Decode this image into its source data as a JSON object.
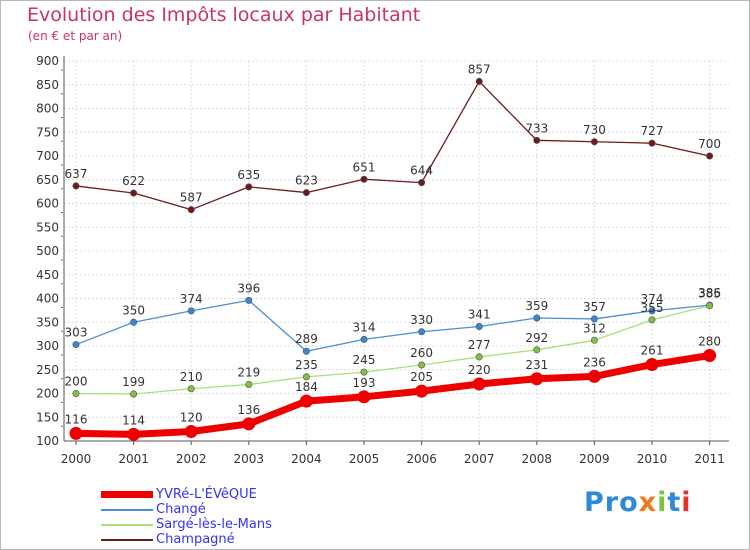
{
  "header": {
    "title": "Evolution des Impôts locaux par Habitant",
    "subtitle": "(en € et par an)"
  },
  "brand": {
    "text": "Proxiti",
    "letters": [
      "Pro",
      "x",
      "i",
      "t",
      "i"
    ]
  },
  "chart_data": {
    "type": "line",
    "x": [
      2000,
      2001,
      2002,
      2003,
      2004,
      2005,
      2006,
      2007,
      2008,
      2009,
      2010,
      2011
    ],
    "x_tick_labels": [
      "2000",
      "2001",
      "2002",
      "2003",
      "2004",
      "2005",
      "2006",
      "2007",
      "2008",
      "2009",
      "2010",
      "2011"
    ],
    "ylim": [
      100,
      900
    ],
    "y_ticks": [
      100,
      150,
      200,
      250,
      300,
      350,
      400,
      450,
      500,
      550,
      600,
      650,
      700,
      750,
      800,
      850,
      900
    ],
    "grid": true,
    "legend_position": "bottom-left",
    "series": [
      {
        "name": "YVRé-L'ÉVêQUE",
        "color": "#ee0000",
        "point_color": "#ee0000",
        "values": [
          116,
          114,
          120,
          136,
          184,
          193,
          205,
          220,
          231,
          236,
          261,
          280
        ],
        "labels": [
          "116",
          "114",
          "120",
          "136",
          "184",
          "193",
          "205",
          "220",
          "231",
          "236",
          "261",
          "280"
        ]
      },
      {
        "name": "Changé",
        "color": "#4a8fd0",
        "point_color": "#3a86d0",
        "values": [
          303,
          350,
          374,
          396,
          289,
          314,
          330,
          341,
          359,
          357,
          374,
          386
        ],
        "labels": [
          "303",
          "350",
          "374",
          "396",
          "289",
          "314",
          "330",
          "341",
          "359",
          "357",
          "374",
          "386"
        ]
      },
      {
        "name": "Sargé-lès-le-Mans",
        "color": "#a8e07a",
        "point_color": "#7fc241",
        "values": [
          200,
          199,
          210,
          219,
          235,
          245,
          260,
          277,
          292,
          312,
          355,
          385
        ],
        "labels": [
          "200",
          "199",
          "210",
          "219",
          "235",
          "245",
          "260",
          "277",
          "292",
          "312",
          "355",
          "385"
        ]
      },
      {
        "name": "Champagné",
        "color": "#6e1a1a",
        "point_color": "#6e1a1a",
        "values": [
          637,
          622,
          587,
          635,
          623,
          651,
          644,
          857,
          733,
          730,
          727,
          700
        ],
        "labels": [
          "637",
          "622",
          "587",
          "635",
          "623",
          "651",
          "644",
          "857",
          "733",
          "730",
          "727",
          "700"
        ]
      }
    ]
  }
}
